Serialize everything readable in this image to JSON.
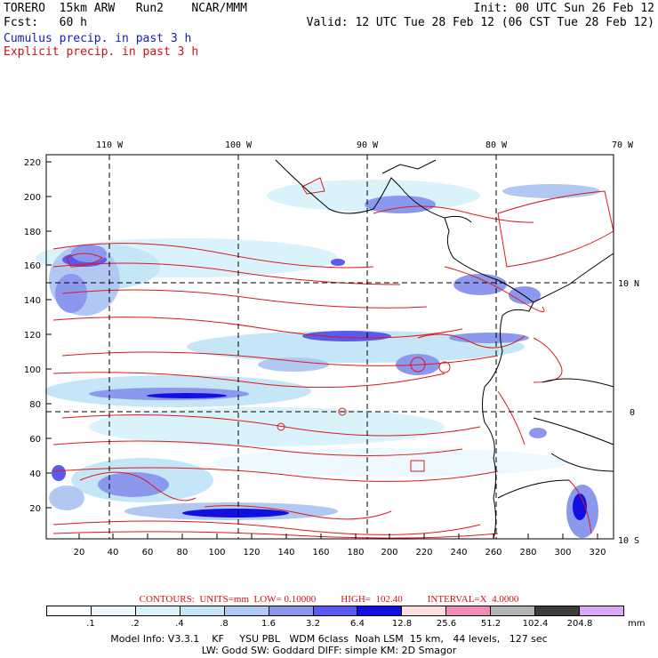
{
  "header": {
    "line1_left": "TORERO  15km ARW   Run2    NCAR/MMM",
    "line1_right": "Init: 00 UTC Sun 26 Feb 12",
    "line2_left": "Fcst:   60 h",
    "line2_right": "Valid: 12 UTC Tue 28 Feb 12 (06 CST Tue 28 Feb 12)",
    "legend_cumulus": "Cumulus precip. in past 3 h",
    "legend_explicit": "Explicit precip. in past 3 h"
  },
  "map": {
    "top_labels": [
      "110 W",
      "100 W",
      "90 W",
      "80 W",
      "70 W"
    ],
    "left_labels": [
      "220",
      "200",
      "180",
      "160",
      "140",
      "120",
      "100",
      "80",
      "60",
      "40",
      "20"
    ],
    "bottom_labels": [
      "20",
      "40",
      "60",
      "80",
      "100",
      "120",
      "140",
      "160",
      "180",
      "200",
      "220",
      "240",
      "260",
      "280",
      "300",
      "320"
    ],
    "right_labels": [
      "10 N",
      "0",
      "10 S"
    ]
  },
  "contours_line": {
    "contours": "CONTOURS:  UNITS=mm  LOW= 0.10000",
    "high": "HIGH=  102.40",
    "interval": "INTERVAL=X  4.0000"
  },
  "colorbar": {
    "labels": [
      ".1",
      ".2",
      ".4",
      ".8",
      "1.6",
      "3.2",
      "6.4",
      "12.8",
      "25.6",
      "51.2",
      "102.4",
      "204.8"
    ],
    "units": "mm",
    "colors": [
      "#ffffff",
      "#eef8ff",
      "#daf2fa",
      "#c4e6f7",
      "#b0c8f2",
      "#8c98ee",
      "#5a5aee",
      "#1010e0",
      "#ffdede",
      "#f08cb8",
      "#b4b4b4",
      "#3c3c3c",
      "#d8a8f4"
    ]
  },
  "footer": {
    "line1": "Model Info: V3.3.1    KF     YSU PBL   WDM 6class  Noah LSM  15 km,   44 levels,   127 sec",
    "line2": "LW: Godd SW: Goddard DIFF: simple KM: 2D Smagor"
  }
}
